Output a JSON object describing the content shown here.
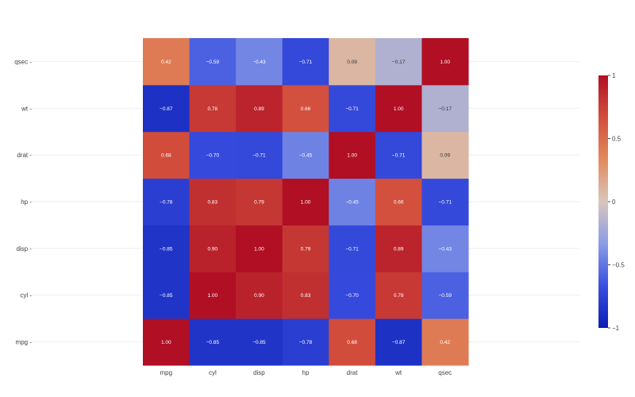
{
  "chart_data": {
    "type": "heatmap",
    "x_labels": [
      "mpg",
      "cyl",
      "disp",
      "hp",
      "drat",
      "wt",
      "qsec"
    ],
    "y_labels": [
      "mpg",
      "cyl",
      "disp",
      "hp",
      "drat",
      "wt",
      "qsec"
    ],
    "values": [
      [
        1.0,
        -0.85,
        -0.85,
        -0.78,
        0.68,
        -0.87,
        0.42
      ],
      [
        -0.85,
        1.0,
        0.9,
        0.83,
        -0.7,
        0.78,
        -0.59
      ],
      [
        -0.85,
        0.9,
        1.0,
        0.79,
        -0.71,
        0.89,
        -0.43
      ],
      [
        -0.78,
        0.83,
        0.79,
        1.0,
        -0.45,
        0.66,
        -0.71
      ],
      [
        0.68,
        -0.7,
        -0.71,
        -0.45,
        1.0,
        -0.71,
        0.09
      ],
      [
        -0.87,
        0.78,
        0.89,
        0.66,
        -0.71,
        1.0,
        -0.17
      ],
      [
        0.42,
        -0.59,
        -0.43,
        -0.71,
        0.09,
        -0.17,
        1.0
      ]
    ],
    "zmin": -1,
    "zmax": 1,
    "colorscale": [
      "#0b1eb4",
      "#3a4fe0",
      "#8a9de6",
      "#d8c6bc",
      "#e38a5c",
      "#d24f3c",
      "#b00f24"
    ],
    "colorbar_ticks": [
      "1",
      "0.5",
      "0",
      "−0.5",
      "−1"
    ],
    "colorbar_tick_values": [
      1,
      0.5,
      0,
      -0.5,
      -1
    ],
    "legend": "right",
    "grid": true
  }
}
